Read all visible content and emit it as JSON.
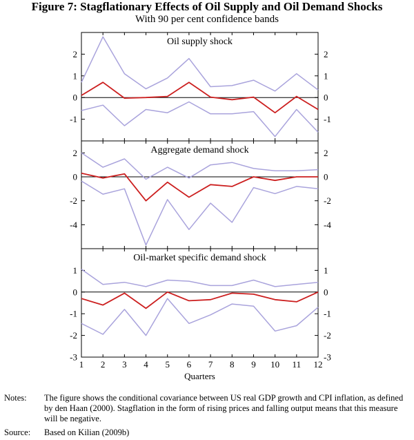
{
  "title": "Figure 7: Stagflationary Effects of Oil Supply and Oil Demand Shocks",
  "subtitle": "With 90 per cent confidence bands",
  "colors": {
    "estimate": "#cc1f1f",
    "bands": "#a9a3dc",
    "axis": "#000000"
  },
  "chart_data": [
    {
      "type": "line",
      "title": "Oil supply shock",
      "x": [
        1,
        2,
        3,
        4,
        5,
        6,
        7,
        8,
        9,
        10,
        11,
        12
      ],
      "ylim": [
        -2,
        3
      ],
      "yticks": [
        -1,
        0,
        1,
        2
      ],
      "series": [
        {
          "name": "Estimate",
          "role": "estimate",
          "values": [
            0.1,
            0.7,
            -0.03,
            0.0,
            0.05,
            0.7,
            0.02,
            -0.1,
            0.02,
            -0.7,
            0.05,
            -0.55
          ]
        },
        {
          "name": "Upper band",
          "role": "band",
          "values": [
            0.7,
            2.8,
            1.1,
            0.4,
            0.9,
            1.8,
            0.5,
            0.55,
            0.8,
            0.3,
            1.1,
            0.35
          ]
        },
        {
          "name": "Lower band",
          "role": "band",
          "values": [
            -0.6,
            -0.35,
            -1.3,
            -0.55,
            -0.7,
            -0.2,
            -0.75,
            -0.75,
            -0.65,
            -1.8,
            -0.55,
            -1.6
          ]
        }
      ]
    },
    {
      "type": "line",
      "title": "Aggregate demand shock",
      "x": [
        1,
        2,
        3,
        4,
        5,
        6,
        7,
        8,
        9,
        10,
        11,
        12
      ],
      "ylim": [
        -6,
        3
      ],
      "yticks": [
        -4,
        -2,
        0,
        2
      ],
      "series": [
        {
          "name": "Estimate",
          "role": "estimate",
          "values": [
            0.3,
            -0.1,
            0.25,
            -2.0,
            -0.45,
            -1.7,
            -0.65,
            -0.8,
            0.0,
            -0.3,
            0.0,
            0.0
          ]
        },
        {
          "name": "Upper band",
          "role": "band",
          "values": [
            2.0,
            0.8,
            1.5,
            -0.2,
            0.8,
            -0.1,
            1.0,
            1.2,
            0.7,
            0.5,
            0.5,
            0.6
          ]
        },
        {
          "name": "Lower band",
          "role": "band",
          "values": [
            -0.35,
            -1.45,
            -1.0,
            -5.7,
            -1.9,
            -4.4,
            -2.2,
            -3.8,
            -0.9,
            -1.4,
            -0.8,
            -1.0
          ]
        }
      ]
    },
    {
      "type": "line",
      "title": "Oil-market specific demand shock",
      "x": [
        1,
        2,
        3,
        4,
        5,
        6,
        7,
        8,
        9,
        10,
        11,
        12
      ],
      "xlabel": "Quarters",
      "xticks": [
        "1",
        "2",
        "3",
        "4",
        "5",
        "6",
        "7",
        "8",
        "9",
        "10",
        "11",
        "12"
      ],
      "ylim": [
        -3,
        2
      ],
      "yticks": [
        -3,
        -2,
        -1,
        0,
        1
      ],
      "series": [
        {
          "name": "Estimate",
          "role": "estimate",
          "values": [
            -0.3,
            -0.6,
            -0.05,
            -0.75,
            0.0,
            -0.4,
            -0.35,
            -0.05,
            -0.1,
            -0.35,
            -0.45,
            0.0
          ]
        },
        {
          "name": "Upper band",
          "role": "band",
          "values": [
            1.05,
            0.35,
            0.45,
            0.25,
            0.55,
            0.5,
            0.3,
            0.3,
            0.55,
            0.25,
            0.35,
            0.45
          ]
        },
        {
          "name": "Lower band",
          "role": "band",
          "values": [
            -1.45,
            -1.95,
            -0.8,
            -2.0,
            -0.3,
            -1.45,
            -1.05,
            -0.55,
            -0.65,
            -1.8,
            -1.55,
            -0.7
          ]
        }
      ]
    }
  ],
  "notes": {
    "label": "Notes:",
    "text": "The figure shows the conditional covariance between US real GDP growth and CPI inflation, as defined by den Haan (2000). Stagflation in the form of rising prices and falling output means that this measure will be negative."
  },
  "source": {
    "label": "Source:",
    "text": "Based on Kilian (2009b)"
  }
}
